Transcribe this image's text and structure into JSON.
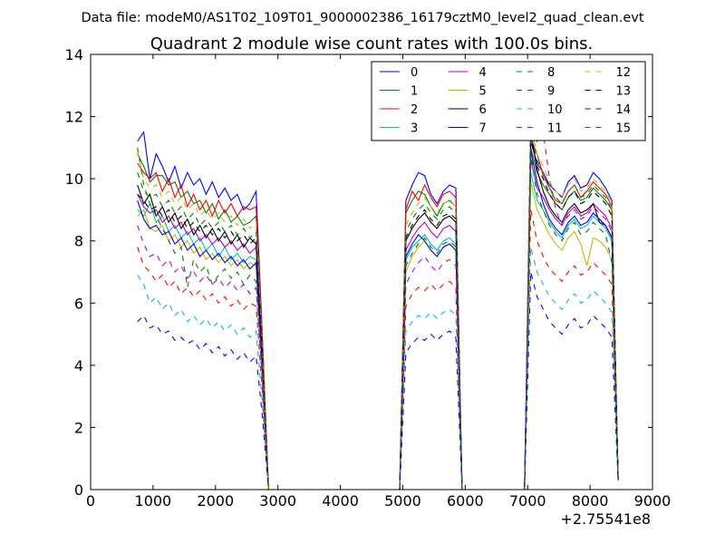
{
  "suptitle": "Data file: modeM0/AS1T02_109T01_9000002386_16179cztM0_level2_quad_clean.evt",
  "chart_data": {
    "type": "line",
    "title": "Quadrant 2 module wise count rates with 100.0s bins.",
    "xlabel": "",
    "ylabel": "",
    "x_offset_label": "+2.75541e8",
    "xlim": [
      0,
      9000
    ],
    "ylim": [
      0,
      14
    ],
    "x_ticks": [
      "0",
      "1000",
      "2000",
      "3000",
      "4000",
      "5000",
      "6000",
      "7000",
      "8000",
      "9000"
    ],
    "y_ticks": [
      "0",
      "2",
      "4",
      "6",
      "8",
      "10",
      "12",
      "14"
    ],
    "legend_position": "top-right",
    "legend_columns": 4,
    "x": [
      750,
      850,
      950,
      1050,
      1150,
      1250,
      1350,
      1450,
      1550,
      1650,
      1750,
      1850,
      1950,
      2050,
      2150,
      2250,
      2350,
      2450,
      2550,
      2650,
      2750,
      2850,
      2950,
      4950,
      5050,
      5150,
      5250,
      5350,
      5450,
      5550,
      5650,
      5750,
      5850,
      5950,
      6050,
      6950,
      7050,
      7150,
      7250,
      7350,
      7450,
      7550,
      7650,
      7750,
      7850,
      7950,
      8050,
      8150,
      8250,
      8350,
      8450
    ],
    "series": [
      {
        "name": "0",
        "color": "#0000ff",
        "dash": "solid",
        "values": [
          11.2,
          11.5,
          10.0,
          10.8,
          10.4,
          9.9,
          10.4,
          9.7,
          10.2,
          9.8,
          10.0,
          9.5,
          9.9,
          9.4,
          9.7,
          9.3,
          9.5,
          9.0,
          9.2,
          9.6,
          5.0,
          0.0,
          0.0,
          0.0,
          9.3,
          9.8,
          10.2,
          10.1,
          9.5,
          9.2,
          9.6,
          9.8,
          9.7,
          0.0,
          0.0,
          0.0,
          11.2,
          10.5,
          10.2,
          9.8,
          9.6,
          9.4,
          9.9,
          10.1,
          9.7,
          9.8,
          10.2,
          10.0,
          9.7,
          9.3,
          0.3
        ]
      },
      {
        "name": "1",
        "color": "#008000",
        "dash": "solid",
        "values": [
          10.8,
          10.4,
          9.9,
          10.1,
          10.1,
          9.8,
          9.9,
          9.4,
          9.6,
          9.2,
          9.3,
          8.9,
          9.2,
          8.7,
          9.0,
          8.6,
          8.8,
          8.5,
          8.6,
          8.8,
          4.8,
          0.0,
          0.0,
          0.0,
          8.9,
          9.3,
          9.6,
          9.5,
          9.1,
          8.8,
          9.2,
          9.3,
          9.1,
          0.0,
          0.0,
          0.0,
          11.0,
          10.2,
          9.8,
          9.5,
          9.2,
          9.0,
          9.4,
          9.6,
          9.3,
          9.4,
          9.7,
          9.5,
          9.3,
          9.0,
          0.3
        ]
      },
      {
        "name": "2",
        "color": "#ff0000",
        "dash": "solid",
        "values": [
          10.5,
          10.2,
          10.0,
          10.2,
          9.6,
          10.0,
          9.4,
          9.8,
          9.1,
          9.5,
          9.0,
          9.3,
          8.8,
          9.3,
          8.9,
          9.2,
          8.8,
          9.1,
          9.0,
          9.1,
          4.9,
          0.0,
          0.0,
          0.0,
          9.0,
          9.6,
          9.3,
          9.8,
          9.4,
          9.1,
          9.5,
          9.6,
          9.4,
          0.0,
          0.0,
          0.0,
          11.3,
          10.8,
          10.1,
          9.7,
          9.3,
          9.2,
          9.6,
          9.8,
          9.4,
          9.6,
          9.9,
          9.7,
          9.5,
          9.1,
          0.3
        ]
      },
      {
        "name": "3",
        "color": "#00bfbf",
        "dash": "solid",
        "values": [
          9.0,
          8.8,
          9.2,
          8.6,
          8.8,
          8.3,
          8.5,
          8.1,
          8.3,
          7.9,
          8.1,
          7.7,
          7.9,
          7.5,
          7.8,
          7.4,
          7.6,
          7.3,
          7.5,
          7.4,
          4.0,
          0.0,
          0.0,
          0.0,
          7.4,
          7.8,
          8.0,
          8.2,
          7.9,
          7.7,
          8.0,
          8.1,
          7.9,
          0.0,
          0.0,
          0.0,
          10.2,
          9.3,
          9.0,
          8.6,
          8.3,
          8.1,
          8.5,
          8.7,
          8.4,
          8.5,
          8.8,
          8.6,
          8.4,
          8.0,
          0.3
        ]
      },
      {
        "name": "4",
        "color": "#bf00bf",
        "dash": "solid",
        "values": [
          9.5,
          9.1,
          8.9,
          9.0,
          8.6,
          8.8,
          8.4,
          8.6,
          8.2,
          8.4,
          8.0,
          8.2,
          7.9,
          8.1,
          7.8,
          8.0,
          7.7,
          7.9,
          7.6,
          7.8,
          4.2,
          0.0,
          0.0,
          0.0,
          7.7,
          8.1,
          8.4,
          8.6,
          8.3,
          8.1,
          8.4,
          8.5,
          8.3,
          0.0,
          0.0,
          0.0,
          10.6,
          9.7,
          9.4,
          9.0,
          8.7,
          8.5,
          8.9,
          9.1,
          8.8,
          8.9,
          9.2,
          9.0,
          8.8,
          8.4,
          0.3
        ]
      },
      {
        "name": "5",
        "color": "#bfbf00",
        "dash": "solid",
        "values": [
          8.8,
          9.0,
          8.4,
          8.3,
          8.5,
          8.0,
          8.2,
          7.8,
          8.0,
          7.6,
          7.8,
          7.4,
          7.6,
          7.3,
          7.5,
          7.2,
          7.4,
          7.1,
          7.3,
          7.2,
          3.9,
          0.0,
          0.0,
          0.0,
          7.0,
          7.5,
          7.8,
          8.0,
          7.7,
          7.5,
          7.8,
          7.9,
          7.7,
          0.0,
          0.0,
          0.0,
          9.9,
          9.0,
          8.6,
          8.2,
          7.9,
          7.7,
          8.1,
          8.3,
          7.9,
          7.2,
          8.1,
          8.0,
          7.8,
          7.4,
          0.3
        ]
      },
      {
        "name": "6",
        "color": "#000000",
        "dash": "solid",
        "values": [
          9.8,
          9.2,
          9.5,
          8.8,
          9.1,
          8.6,
          8.9,
          8.4,
          8.7,
          8.2,
          8.5,
          8.1,
          8.4,
          8.0,
          8.3,
          7.9,
          8.2,
          7.8,
          8.1,
          7.9,
          4.3,
          0.0,
          0.0,
          0.0,
          8.0,
          8.4,
          8.7,
          8.9,
          8.6,
          8.4,
          8.7,
          8.8,
          8.6,
          0.0,
          0.0,
          0.0,
          11.5,
          10.3,
          9.6,
          9.1,
          8.8,
          8.6,
          9.0,
          9.2,
          8.9,
          9.0,
          9.2,
          8.6,
          8.5,
          8.1,
          0.3
        ]
      },
      {
        "name": "7",
        "color": "#0000ff",
        "dash": "solid",
        "values": [
          9.3,
          8.7,
          8.4,
          8.5,
          8.2,
          8.3,
          7.9,
          8.1,
          7.7,
          7.9,
          7.5,
          7.7,
          7.4,
          7.6,
          7.3,
          7.5,
          7.2,
          7.4,
          7.1,
          7.3,
          4.0,
          0.0,
          0.0,
          0.0,
          7.5,
          7.9,
          8.2,
          8.0,
          7.7,
          7.5,
          7.8,
          7.9,
          7.7,
          0.0,
          0.0,
          0.0,
          10.9,
          9.9,
          9.2,
          8.7,
          8.4,
          8.2,
          8.6,
          8.8,
          8.5,
          8.6,
          8.9,
          8.7,
          8.5,
          8.1,
          0.3
        ]
      },
      {
        "name": "8",
        "color": "#008000",
        "dash": "dashed",
        "values": [
          11.0,
          9.8,
          9.2,
          8.8,
          8.4,
          8.0,
          7.6,
          7.8,
          6.5,
          7.4,
          7.0,
          7.2,
          6.6,
          6.9,
          7.1,
          6.8,
          7.0,
          6.6,
          6.9,
          6.7,
          3.6,
          0.0,
          0.0,
          0.0,
          7.2,
          7.6,
          7.9,
          8.1,
          7.8,
          7.6,
          7.9,
          8.0,
          7.8,
          0.0,
          0.0,
          0.0,
          10.8,
          9.5,
          9.0,
          8.5,
          8.2,
          8.0,
          8.4,
          8.6,
          8.2,
          8.3,
          8.6,
          8.4,
          8.2,
          7.3,
          0.3
        ]
      },
      {
        "name": "9",
        "color": "#ff0000",
        "dash": "dashed",
        "values": [
          7.8,
          7.2,
          7.0,
          6.7,
          6.9,
          6.5,
          6.7,
          6.3,
          6.5,
          6.2,
          6.4,
          6.1,
          6.3,
          6.0,
          6.2,
          5.9,
          6.1,
          5.8,
          6.0,
          5.9,
          3.2,
          0.0,
          0.0,
          0.0,
          5.9,
          6.3,
          6.5,
          6.4,
          6.6,
          6.4,
          6.6,
          6.7,
          6.5,
          0.0,
          0.0,
          0.0,
          9.0,
          8.0,
          7.5,
          7.1,
          6.9,
          6.7,
          7.0,
          7.2,
          6.9,
          7.0,
          7.3,
          7.1,
          6.9,
          6.6,
          0.3
        ]
      },
      {
        "name": "10",
        "color": "#00bfbf",
        "dash": "dashed",
        "values": [
          6.9,
          6.6,
          6.0,
          6.2,
          5.8,
          6.0,
          5.6,
          5.8,
          5.4,
          5.6,
          5.3,
          5.5,
          5.2,
          5.4,
          5.1,
          5.3,
          5.0,
          5.2,
          4.9,
          5.1,
          2.8,
          0.0,
          0.0,
          0.0,
          5.1,
          5.4,
          5.6,
          5.5,
          5.7,
          5.5,
          5.7,
          5.8,
          5.6,
          0.0,
          0.0,
          0.0,
          7.8,
          7.0,
          6.6,
          6.2,
          6.0,
          5.8,
          6.1,
          6.3,
          6.0,
          6.1,
          6.4,
          6.2,
          6.0,
          5.7,
          0.3
        ]
      },
      {
        "name": "11",
        "color": "#bf00bf",
        "dash": "dashed",
        "values": [
          8.5,
          7.9,
          7.5,
          7.6,
          7.2,
          7.4,
          7.0,
          7.2,
          6.8,
          7.0,
          6.7,
          6.9,
          6.6,
          6.8,
          6.5,
          6.7,
          6.4,
          6.6,
          6.3,
          6.5,
          3.5,
          0.0,
          0.0,
          0.0,
          6.6,
          7.0,
          7.3,
          7.5,
          7.2,
          7.0,
          7.3,
          7.4,
          7.2,
          0.0,
          0.0,
          0.0,
          12.4,
          11.2,
          11.5,
          10.0,
          9.0,
          8.5,
          8.8,
          9.0,
          8.7,
          8.8,
          9.1,
          8.9,
          8.7,
          8.3,
          0.3
        ]
      },
      {
        "name": "12",
        "color": "#bfbf00",
        "dash": "dashed",
        "values": [
          10.9,
          10.0,
          9.7,
          9.8,
          9.4,
          9.6,
          9.2,
          9.4,
          9.0,
          9.2,
          8.8,
          9.0,
          8.7,
          8.9,
          8.6,
          8.8,
          8.5,
          8.7,
          8.4,
          8.6,
          4.6,
          0.0,
          0.0,
          0.0,
          8.5,
          8.9,
          9.2,
          9.4,
          9.1,
          8.9,
          9.2,
          9.3,
          9.1,
          0.0,
          0.0,
          0.0,
          11.7,
          10.8,
          10.4,
          9.9,
          9.6,
          9.4,
          9.8,
          10.0,
          9.6,
          9.7,
          10.0,
          9.8,
          9.6,
          9.2,
          0.3
        ]
      },
      {
        "name": "13",
        "color": "#000000",
        "dash": "dashed",
        "values": [
          9.5,
          9.3,
          9.0,
          9.1,
          8.8,
          9.0,
          8.6,
          8.8,
          8.4,
          8.6,
          8.3,
          8.5,
          8.2,
          8.4,
          8.1,
          8.3,
          8.0,
          8.2,
          7.9,
          8.1,
          4.4,
          0.0,
          0.0,
          0.0,
          8.1,
          8.5,
          8.8,
          9.0,
          8.7,
          8.5,
          8.8,
          8.9,
          8.7,
          0.0,
          0.0,
          0.0,
          11.3,
          10.4,
          10.0,
          9.5,
          9.2,
          9.0,
          9.4,
          9.6,
          9.2,
          9.3,
          9.6,
          9.4,
          9.2,
          8.8,
          0.3
        ]
      },
      {
        "name": "14",
        "color": "#0000ff",
        "dash": "dashed",
        "values": [
          5.4,
          5.6,
          5.2,
          5.3,
          5.0,
          5.1,
          4.8,
          4.9,
          4.7,
          4.8,
          4.5,
          4.7,
          4.4,
          4.6,
          4.3,
          4.5,
          4.2,
          4.4,
          4.1,
          4.3,
          2.4,
          0.0,
          0.0,
          0.0,
          4.4,
          4.7,
          4.9,
          4.8,
          5.0,
          4.8,
          5.0,
          5.1,
          4.9,
          0.0,
          0.0,
          0.0,
          7.0,
          6.2,
          5.8,
          5.4,
          5.2,
          5.0,
          5.3,
          5.5,
          5.2,
          5.3,
          5.6,
          5.4,
          5.2,
          4.9,
          0.3
        ]
      },
      {
        "name": "15",
        "color": "#008000",
        "dash": "dashed",
        "values": [
          10.2,
          9.6,
          9.4,
          9.5,
          9.1,
          9.3,
          8.9,
          9.1,
          8.7,
          8.9,
          8.5,
          8.7,
          8.4,
          8.6,
          8.3,
          8.5,
          8.2,
          8.4,
          8.1,
          8.3,
          4.5,
          0.0,
          0.0,
          0.0,
          8.3,
          8.7,
          9.0,
          9.2,
          8.9,
          8.7,
          9.0,
          9.1,
          8.9,
          0.0,
          0.0,
          0.0,
          11.4,
          10.6,
          10.2,
          9.7,
          9.4,
          9.2,
          9.6,
          9.8,
          9.4,
          9.5,
          9.8,
          9.6,
          9.4,
          9.0,
          0.3
        ]
      }
    ]
  }
}
